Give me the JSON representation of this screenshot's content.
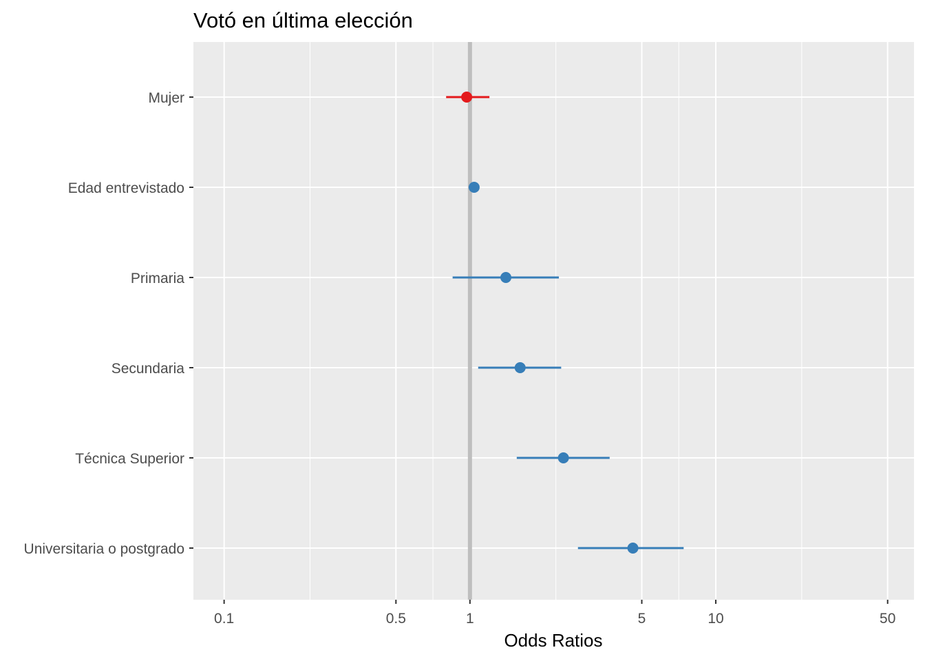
{
  "chart_data": {
    "type": "forest",
    "title": "Votó en última elección",
    "xlabel": "Odds Ratios",
    "ylabel": "",
    "x_scale": "log10",
    "xlim": [
      0.075,
      64
    ],
    "x_ticks": [
      0.1,
      0.5,
      1,
      5,
      10,
      50
    ],
    "x_tick_labels": [
      "0.1",
      "0.5",
      "1",
      "5",
      "10",
      "50"
    ],
    "reference_line": 1,
    "grid": true,
    "categories": [
      "Mujer",
      "Edad entrevistado",
      "Primaria",
      "Secundaria",
      "Técnica Superior",
      "Universitaria o postgrado"
    ],
    "series": [
      {
        "estimates": [
          0.97,
          1.04,
          1.4,
          1.6,
          2.4,
          4.6
        ],
        "ci_low": [
          0.8,
          1.02,
          0.85,
          1.08,
          1.55,
          2.75
        ],
        "ci_high": [
          1.2,
          1.06,
          2.3,
          2.35,
          3.7,
          7.4
        ],
        "point_colors": [
          "#e41a1c",
          "#377eb8",
          "#377eb8",
          "#377eb8",
          "#377eb8",
          "#377eb8"
        ]
      }
    ],
    "colors": {
      "panel_background": "#ebebeb",
      "gridline": "#ffffff",
      "reference_line": "#bebebe",
      "negative": "#e41a1c",
      "positive": "#377eb8"
    }
  }
}
